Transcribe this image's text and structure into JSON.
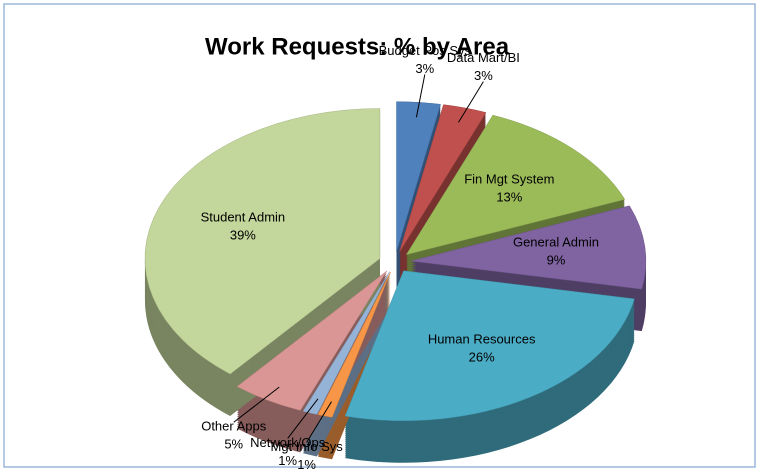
{
  "chart_data": {
    "type": "pie",
    "title": "Work Requests: % by Area",
    "categories": [
      "Budget Pos Sys",
      "Data Mart/BI",
      "Fin Mgt System",
      "General Admin",
      "Human Resources",
      "Mgt Info Sys",
      "Network/Ops",
      "Other Apps",
      "Student Admin"
    ],
    "values": [
      3,
      3,
      13,
      9,
      26,
      1,
      1,
      5,
      39
    ],
    "value_labels": [
      "3%",
      "3%",
      "13%",
      "9%",
      "26%",
      "1%",
      "1%",
      "5%",
      "39%"
    ],
    "colors": [
      "#4f81bd",
      "#c0504d",
      "#9bbb59",
      "#8064a2",
      "#4bacc6",
      "#f79646",
      "#95b3d7",
      "#d99694",
      "#c3d69b"
    ]
  }
}
